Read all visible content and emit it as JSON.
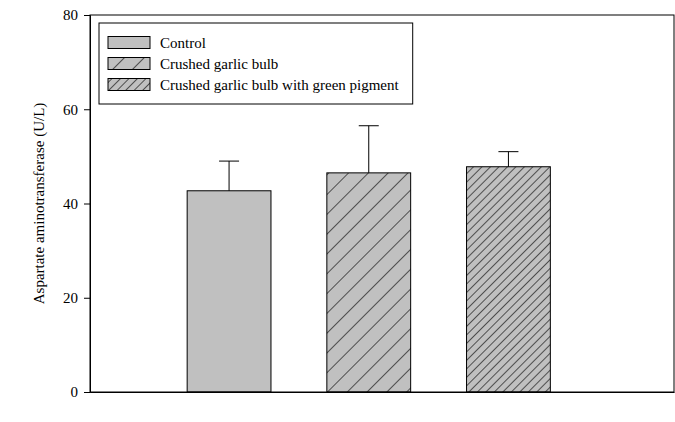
{
  "chart_data": {
    "type": "bar",
    "y_label": "Aspartate aminotransferase (U/L)",
    "categories": [
      null
    ],
    "series": [
      {
        "name": "Control",
        "color": "#c0c0c0",
        "values": [
          42.7
        ],
        "errors": [
          6.3
        ]
      },
      {
        "name": "Crushed garlic bulb",
        "color": "#c0c0c0",
        "values": [
          46.5
        ],
        "errors": [
          10.0
        ]
      },
      {
        "name": "Crushed garlic bulb with green pigment",
        "color": "#c0c0c0",
        "values": [
          47.8
        ],
        "errors": [
          3.2
        ]
      }
    ],
    "ylim": [
      0,
      80
    ],
    "yticks": [
      0,
      20,
      40,
      60,
      80
    ],
    "legend": "upper left",
    "tick_labels": "y",
    "grid": false
  }
}
